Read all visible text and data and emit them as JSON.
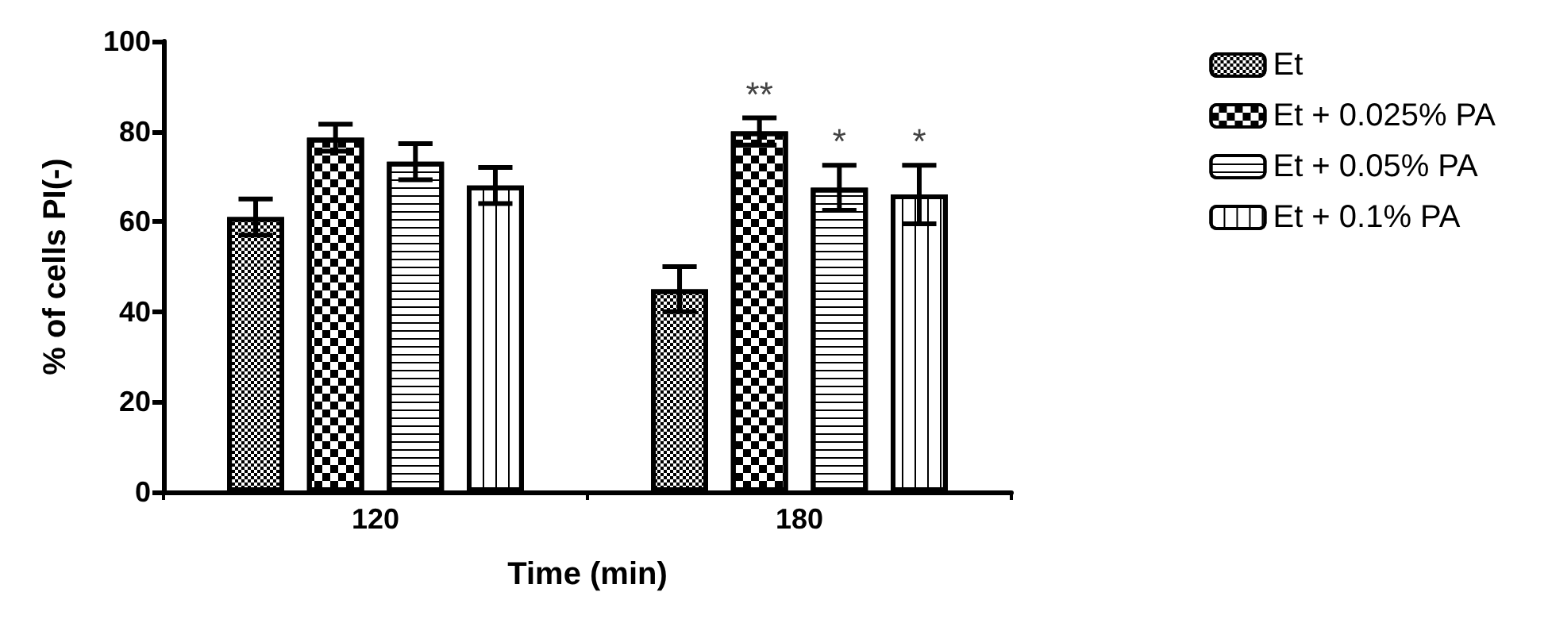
{
  "chart_data": {
    "type": "bar",
    "xlabel": "Time (min)",
    "ylabel": "% of cells PI(-)",
    "categories": [
      "120",
      "180"
    ],
    "series": [
      {
        "name": "Et",
        "color": "#ffffff",
        "values": [
          61,
          45
        ],
        "errors": [
          4,
          5
        ]
      },
      {
        "name": "Et + 0.025% PA",
        "color": "#ffffff",
        "values": [
          78.6,
          80
        ],
        "errors": [
          3,
          3
        ],
        "value_labels": [
          null,
          "**"
        ]
      },
      {
        "name": "Et + 0.05% PA",
        "color": "#ffffff",
        "values": [
          73.3,
          67.5
        ],
        "errors": [
          4,
          5
        ],
        "value_labels": [
          null,
          "*"
        ]
      },
      {
        "name": "Et + 0.1% PA",
        "color": "#ffffff",
        "values": [
          68,
          66
        ],
        "errors": [
          4,
          6.5
        ],
        "value_labels": [
          null,
          "*"
        ]
      }
    ],
    "ylim": [
      0,
      100
    ],
    "yticks": [
      0,
      20,
      40,
      60,
      80,
      100
    ],
    "grid": false,
    "legend": "top right"
  }
}
